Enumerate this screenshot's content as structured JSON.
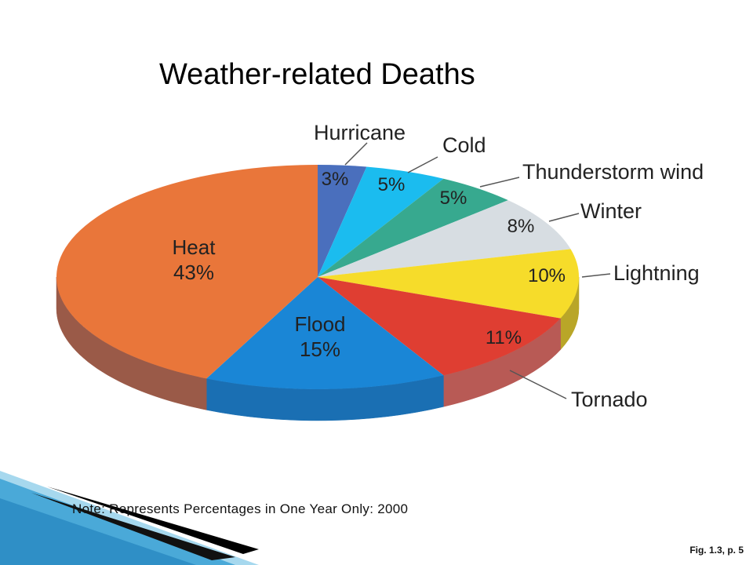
{
  "slide": {
    "title": "Weather-related Deaths",
    "note": "Note:   Represents Percentages in One Year Only:  2000",
    "figure_ref": "Fig. 1.3, p. 5"
  },
  "chart_data": {
    "type": "pie",
    "title": "Weather-related Deaths",
    "unit": "%",
    "slices": [
      {
        "label": "Hurricane",
        "value": 3,
        "value_label": "3%",
        "color": "#4a6fbd",
        "side_color": "#35508e"
      },
      {
        "label": "Cold",
        "value": 5,
        "value_label": "5%",
        "color": "#1bbcef",
        "side_color": "#1490b8"
      },
      {
        "label": "Thunderstorm wind",
        "value": 5,
        "value_label": "5%",
        "color": "#37a98f",
        "side_color": "#28806b"
      },
      {
        "label": "Winter",
        "value": 8,
        "value_label": "8%",
        "color": "#d7dde2",
        "side_color": "#a9b0b6"
      },
      {
        "label": "Lightning",
        "value": 10,
        "value_label": "10%",
        "color": "#f6dc2a",
        "side_color": "#b9a628"
      },
      {
        "label": "Tornado",
        "value": 11,
        "value_label": "11%",
        "color": "#df3e32",
        "side_color": "#b85a55"
      },
      {
        "label": "Flood",
        "value": 15,
        "value_label": "15%",
        "color": "#1a86d6",
        "side_color": "#1a6fb3"
      },
      {
        "label": "Heat",
        "value": 43,
        "value_label": "43%",
        "color": "#e9763a",
        "side_color": "#9a5a48"
      }
    ]
  },
  "colors": {
    "deco_dark": "#000000",
    "deco_light": "#5fb8de",
    "deco_mid": "#2d8fc4"
  }
}
